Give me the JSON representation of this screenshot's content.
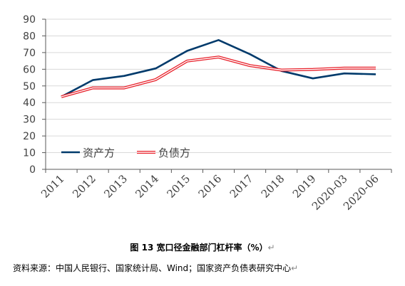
{
  "chart_data": {
    "type": "line",
    "categories": [
      "2011",
      "2012",
      "2013",
      "2014",
      "2015",
      "2016",
      "2017",
      "2018",
      "2019",
      "2020-03",
      "2020-06"
    ],
    "series": [
      {
        "name": "资产方",
        "values": [
          43.5,
          53.5,
          56,
          60.5,
          71,
          77.5,
          69,
          59,
          54.5,
          57.5,
          57
        ],
        "color": "#003a6b",
        "style": "solid"
      },
      {
        "name": "负债方",
        "values": [
          43.5,
          48.8,
          48.8,
          53.8,
          64.9,
          67.3,
          62.2,
          59.5,
          59.9,
          60.7,
          60.7
        ],
        "color": "#e8202a",
        "style": "double"
      }
    ],
    "ylim": [
      0,
      90
    ],
    "yticks": [
      0,
      10,
      20,
      30,
      40,
      50,
      60,
      70,
      80,
      90
    ],
    "grid": true,
    "legend_position": "bottom-left"
  },
  "caption": {
    "text": "图 13 宽口径金融部门杠杆率（%）",
    "mark": "↵"
  },
  "source": {
    "text": "资料来源：中国人民银行、国家统计局、Wind；国家资产负债表研究中心",
    "mark": "↵"
  }
}
